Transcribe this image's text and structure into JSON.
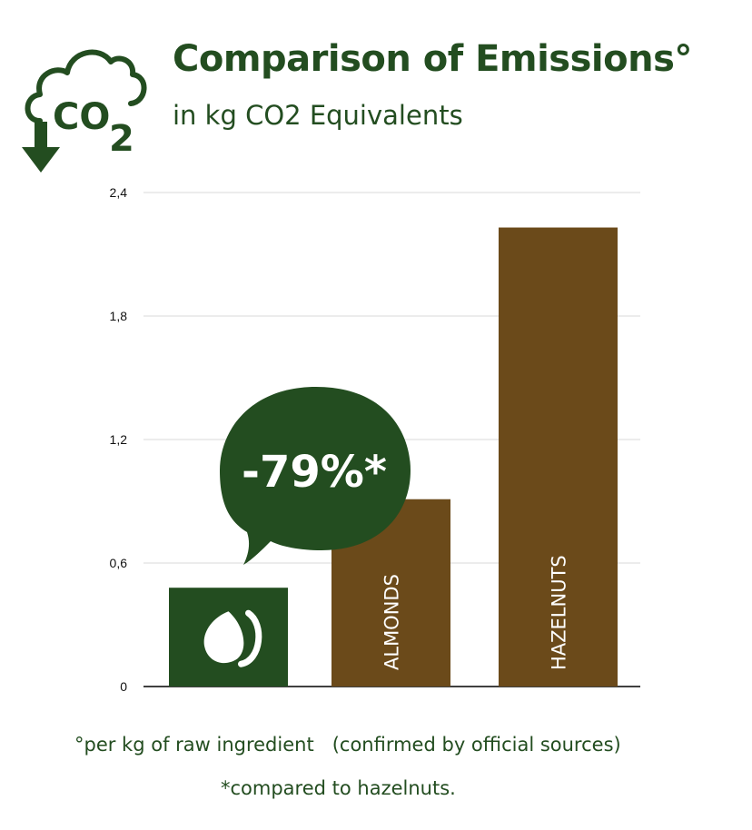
{
  "header": {
    "title": "Comparison of Emissions°",
    "subtitle": "in kg CO2 Equivalents",
    "icon": "co2-cloud-down-arrow-icon"
  },
  "colors": {
    "brand_green": "#234d20",
    "nut_brown": "#6b4a1a",
    "grid": "#d9d9d9"
  },
  "chart_data": {
    "type": "bar",
    "categories": [
      "",
      "ALMONDS",
      "HAZELNUTS"
    ],
    "values": [
      0.48,
      0.91,
      2.23
    ],
    "bar_colors": [
      "#234d20",
      "#6b4a1a",
      "#6b4a1a"
    ],
    "first_bar_icon": "brand-drop-logo-icon",
    "ylim": [
      0,
      2.4
    ],
    "yticks": [
      "0",
      "0,6",
      "1,2",
      "1,8",
      "2,4"
    ],
    "ytick_values": [
      0,
      0.6,
      1.2,
      1.8,
      2.4
    ],
    "grid": true,
    "callout": "-79%*"
  },
  "footnotes": {
    "line1": "°per kg of raw ingredient   (confirmed by official sources)",
    "line2": "*compared to hazelnuts."
  }
}
